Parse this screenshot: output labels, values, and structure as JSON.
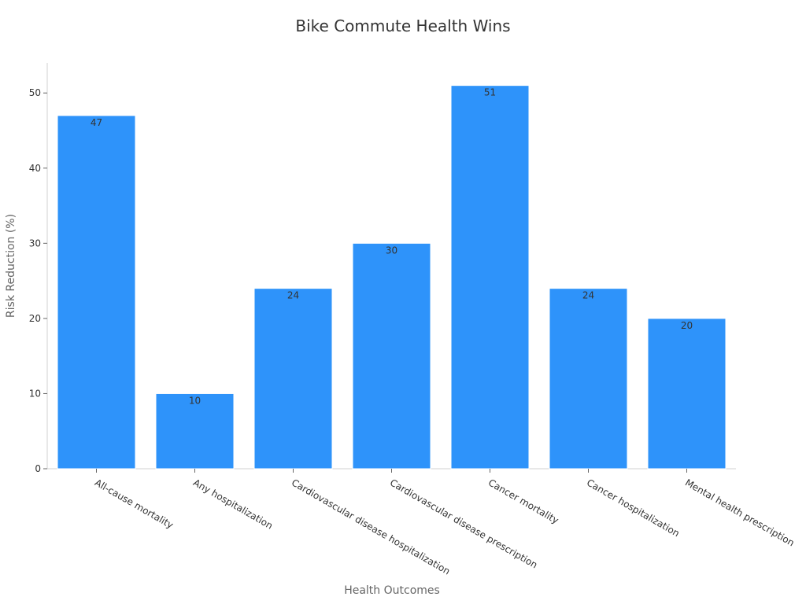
{
  "chart_data": {
    "type": "bar",
    "title": "Bike Commute Health Wins",
    "xlabel": "Health Outcomes",
    "ylabel": "Risk Reduction (%)",
    "categories": [
      "All-cause mortality",
      "Any hospitalization",
      "Cardiovascular disease hospitalization",
      "Cardiovascular disease prescription",
      "Cancer mortality",
      "Cancer hospitalization",
      "Mental health prescription"
    ],
    "values": [
      47,
      10,
      24,
      30,
      51,
      24,
      20
    ],
    "ylim": [
      0,
      54
    ],
    "yticks": [
      0,
      10,
      20,
      30,
      40,
      50
    ],
    "grid": false,
    "legend": "none",
    "bar_color": "#2e93fa"
  }
}
